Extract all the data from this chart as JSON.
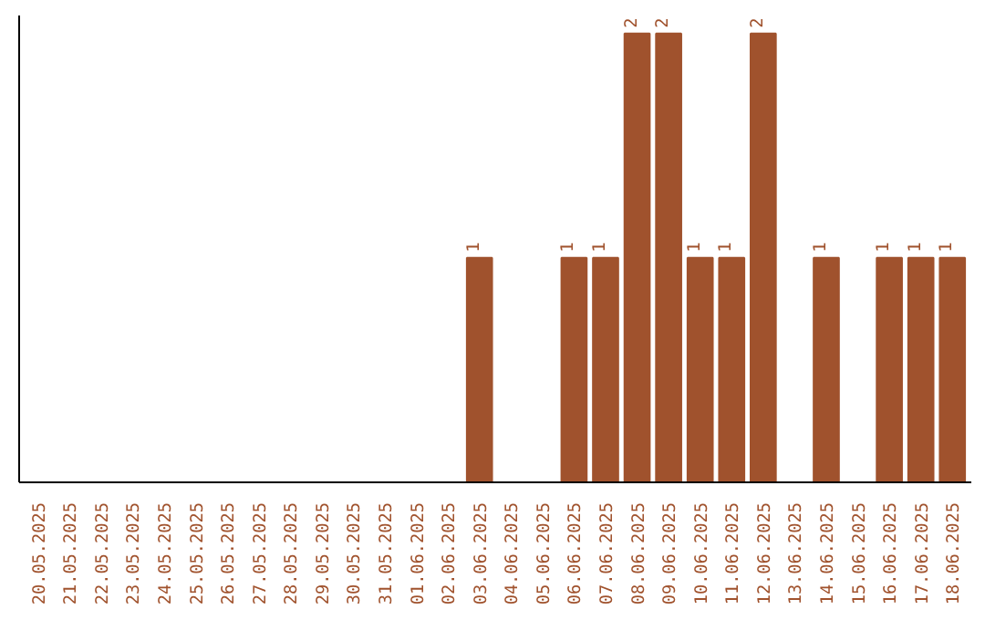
{
  "chart_data": {
    "type": "bar",
    "categories": [
      "20.05.2025",
      "21.05.2025",
      "22.05.2025",
      "23.05.2025",
      "24.05.2025",
      "25.05.2025",
      "26.05.2025",
      "27.05.2025",
      "28.05.2025",
      "29.05.2025",
      "30.05.2025",
      "31.05.2025",
      "01.06.2025",
      "02.06.2025",
      "03.06.2025",
      "04.06.2025",
      "05.06.2025",
      "06.06.2025",
      "07.06.2025",
      "08.06.2025",
      "09.06.2025",
      "10.06.2025",
      "11.06.2025",
      "12.06.2025",
      "13.06.2025",
      "14.06.2025",
      "15.06.2025",
      "16.06.2025",
      "17.06.2025",
      "18.06.2025"
    ],
    "values": [
      null,
      null,
      null,
      null,
      null,
      null,
      null,
      null,
      null,
      null,
      null,
      null,
      null,
      null,
      1,
      null,
      null,
      1,
      1,
      2,
      2,
      1,
      1,
      2,
      null,
      1,
      null,
      1,
      1,
      1
    ],
    "value_labels": [
      null,
      null,
      null,
      null,
      null,
      null,
      null,
      null,
      null,
      null,
      null,
      null,
      null,
      null,
      "1",
      null,
      null,
      "1",
      "1",
      "2",
      "2",
      "1",
      "1",
      "2",
      null,
      "1",
      null,
      "1",
      "1",
      "1"
    ],
    "color": "#a0522d",
    "grid": false,
    "tick_labels": "x"
  }
}
